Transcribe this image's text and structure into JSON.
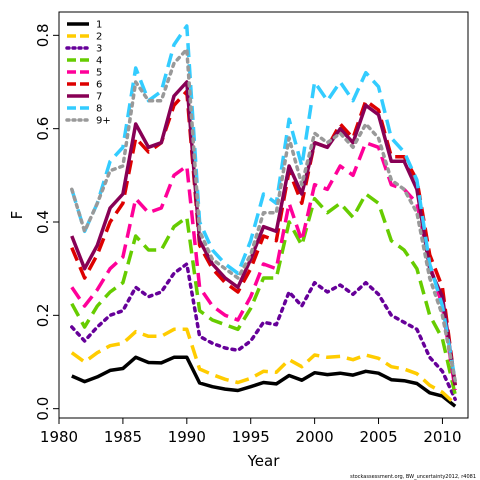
{
  "chart_data": {
    "type": "line",
    "xlabel": "Year",
    "ylabel": "F",
    "xlim": [
      1980,
      2012
    ],
    "ylim": [
      -0.02,
      0.85
    ],
    "x_ticks": [
      1980,
      1985,
      1990,
      1995,
      2000,
      2005,
      2010
    ],
    "y_ticks": [
      0.0,
      0.2,
      0.4,
      0.6,
      0.8
    ],
    "x_tick_labels": [
      "1980",
      "1985",
      "1990",
      "1995",
      "2000",
      "2005",
      "2010"
    ],
    "y_tick_labels": [
      "0.0",
      "0.2",
      "0.4",
      "0.6",
      "0.8"
    ],
    "grid": false,
    "legend_position": "top-left",
    "footnote": "stockassessment.org, BW_uncertainty2012, r4081",
    "x": [
      1981,
      1982,
      1983,
      1984,
      1985,
      1986,
      1987,
      1988,
      1989,
      1990,
      1991,
      1992,
      1993,
      1994,
      1995,
      1996,
      1997,
      1998,
      1999,
      2000,
      2001,
      2002,
      2003,
      2004,
      2005,
      2006,
      2007,
      2008,
      2009,
      2010,
      2011
    ],
    "series": [
      {
        "name": "1",
        "color": "#000000",
        "dash": "solid",
        "values": [
          0.07,
          0.058,
          0.068,
          0.082,
          0.086,
          0.11,
          0.099,
          0.098,
          0.11,
          0.11,
          0.055,
          0.047,
          0.042,
          0.039,
          0.047,
          0.056,
          0.053,
          0.071,
          0.061,
          0.077,
          0.073,
          0.076,
          0.072,
          0.08,
          0.076,
          0.062,
          0.06,
          0.054,
          0.034,
          0.027,
          0.005
        ]
      },
      {
        "name": "2",
        "color": "#FFCC00",
        "dash": "dashed",
        "values": [
          0.12,
          0.1,
          0.12,
          0.135,
          0.14,
          0.165,
          0.155,
          0.155,
          0.17,
          0.17,
          0.085,
          0.073,
          0.063,
          0.056,
          0.065,
          0.08,
          0.078,
          0.105,
          0.09,
          0.115,
          0.11,
          0.112,
          0.105,
          0.115,
          0.108,
          0.09,
          0.085,
          0.075,
          0.05,
          0.035,
          0.01
        ]
      },
      {
        "name": "3",
        "color": "#660099",
        "dash": "dotted",
        "values": [
          0.175,
          0.145,
          0.175,
          0.2,
          0.21,
          0.26,
          0.24,
          0.25,
          0.29,
          0.31,
          0.155,
          0.14,
          0.13,
          0.125,
          0.145,
          0.185,
          0.18,
          0.25,
          0.22,
          0.27,
          0.25,
          0.265,
          0.245,
          0.27,
          0.245,
          0.2,
          0.185,
          0.17,
          0.11,
          0.08,
          0.02
        ]
      },
      {
        "name": "4",
        "color": "#66CC00",
        "dash": "dashed",
        "values": [
          0.225,
          0.175,
          0.22,
          0.25,
          0.27,
          0.37,
          0.34,
          0.34,
          0.39,
          0.41,
          0.21,
          0.19,
          0.18,
          0.17,
          0.215,
          0.28,
          0.28,
          0.4,
          0.35,
          0.45,
          0.42,
          0.44,
          0.41,
          0.46,
          0.44,
          0.36,
          0.34,
          0.3,
          0.2,
          0.15,
          0.03
        ]
      },
      {
        "name": "5",
        "color": "#FF0099",
        "dash": "dashed",
        "values": [
          0.26,
          0.22,
          0.255,
          0.3,
          0.325,
          0.45,
          0.42,
          0.43,
          0.5,
          0.52,
          0.26,
          0.22,
          0.2,
          0.19,
          0.24,
          0.31,
          0.3,
          0.44,
          0.36,
          0.48,
          0.47,
          0.52,
          0.5,
          0.57,
          0.56,
          0.48,
          0.47,
          0.44,
          0.31,
          0.22,
          0.04
        ]
      },
      {
        "name": "6",
        "color": "#DD0000",
        "dash": "dashed",
        "values": [
          0.345,
          0.28,
          0.33,
          0.4,
          0.44,
          0.58,
          0.55,
          0.57,
          0.65,
          0.68,
          0.35,
          0.3,
          0.27,
          0.25,
          0.3,
          0.37,
          0.36,
          0.51,
          0.44,
          0.57,
          0.56,
          0.61,
          0.58,
          0.66,
          0.64,
          0.54,
          0.54,
          0.49,
          0.33,
          0.26,
          0.05
        ]
      },
      {
        "name": "7",
        "color": "#880055",
        "dash": "solid",
        "values": [
          0.37,
          0.3,
          0.35,
          0.43,
          0.46,
          0.61,
          0.56,
          0.57,
          0.67,
          0.7,
          0.36,
          0.31,
          0.28,
          0.26,
          0.32,
          0.39,
          0.38,
          0.52,
          0.46,
          0.57,
          0.56,
          0.6,
          0.57,
          0.65,
          0.63,
          0.53,
          0.53,
          0.47,
          0.3,
          0.24,
          0.05
        ]
      },
      {
        "name": "8",
        "color": "#33CCFF",
        "dash": "dashed",
        "values": [
          0.47,
          0.38,
          0.44,
          0.53,
          0.56,
          0.73,
          0.66,
          0.68,
          0.78,
          0.82,
          0.4,
          0.34,
          0.31,
          0.29,
          0.36,
          0.46,
          0.44,
          0.62,
          0.52,
          0.7,
          0.66,
          0.7,
          0.66,
          0.72,
          0.69,
          0.58,
          0.55,
          0.49,
          0.31,
          0.22,
          0.06
        ]
      },
      {
        "name": "9+",
        "color": "#999999",
        "dash": "dotted",
        "values": [
          0.47,
          0.38,
          0.44,
          0.51,
          0.52,
          0.7,
          0.66,
          0.66,
          0.74,
          0.77,
          0.38,
          0.32,
          0.3,
          0.28,
          0.33,
          0.42,
          0.42,
          0.58,
          0.48,
          0.59,
          0.57,
          0.59,
          0.56,
          0.61,
          0.58,
          0.49,
          0.47,
          0.42,
          0.28,
          0.2,
          0.06
        ]
      }
    ]
  }
}
